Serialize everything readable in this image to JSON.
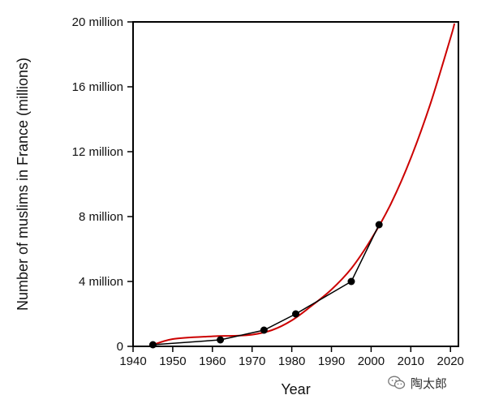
{
  "chart_data": {
    "type": "line",
    "xlabel": "Year",
    "ylabel": "Number of muslims in France (millions)",
    "xlim": [
      1940,
      2022
    ],
    "ylim": [
      0,
      20
    ],
    "x_ticks": [
      1940,
      1950,
      1960,
      1970,
      1980,
      1990,
      2000,
      2010,
      2020
    ],
    "x_tick_labels": [
      "1940",
      "1950",
      "1960",
      "1970",
      "1980",
      "1990",
      "2000",
      "2010",
      "2020"
    ],
    "y_ticks": [
      0,
      4,
      8,
      12,
      16,
      20
    ],
    "y_tick_labels": [
      "0",
      "4 million",
      "8 million",
      "12 million",
      "16 million",
      "20 million"
    ],
    "grid": false,
    "series": [
      {
        "kind": "observed",
        "color": "#000000",
        "x": [
          1945,
          1962,
          1973,
          1981,
          1995,
          2002
        ],
        "y": [
          0.1,
          0.4,
          1.0,
          2.0,
          4.0,
          7.5
        ]
      },
      {
        "kind": "fitted-curve",
        "color": "#cc0000",
        "x": [
          1944,
          1950,
          1960,
          1965,
          1970,
          1975,
          1980,
          1985,
          1990,
          1995,
          2000,
          2005,
          2010,
          2015,
          2020,
          2021
        ],
        "y": [
          0.0,
          0.45,
          0.62,
          0.65,
          0.72,
          1.0,
          1.6,
          2.5,
          3.5,
          4.8,
          6.6,
          8.8,
          11.6,
          15.0,
          19.0,
          19.9
        ]
      }
    ]
  },
  "watermark": {
    "text": "陶太郎",
    "icon": "wechat-icon"
  }
}
